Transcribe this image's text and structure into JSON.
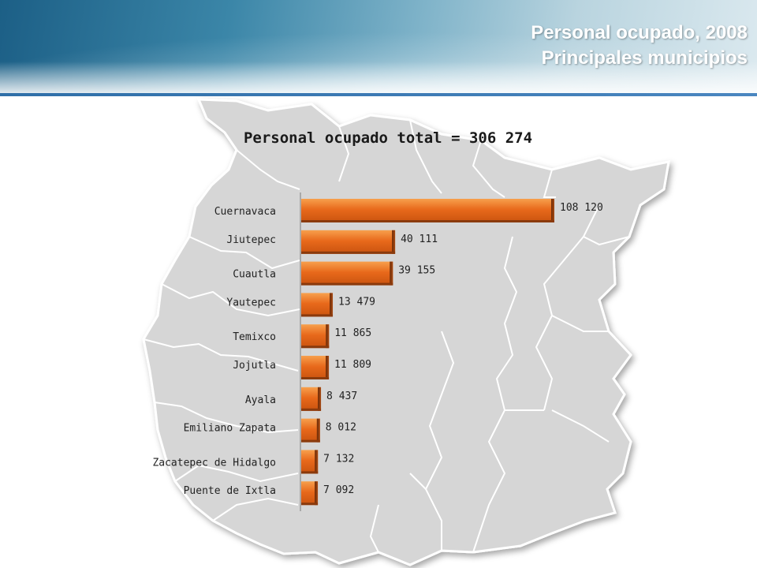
{
  "header": {
    "title_line1": "Personal ocupado, 2008",
    "title_line2": "Principales municipios"
  },
  "colors": {
    "bar_face": "#e8691b",
    "bar_highlight": "#f7a04d",
    "bar_dark": "#8a3a0d",
    "map_fill": "#d6d6d6",
    "map_lines": "#ffffff"
  },
  "chart_data": {
    "type": "bar",
    "orientation": "horizontal",
    "title": "Personal ocupado total = 306 274",
    "categories": [
      "Cuernavaca",
      "Jiutepec",
      "Cuautla",
      "Yautepec",
      "Temixco",
      "Jojutla",
      "Ayala",
      "Emiliano Zapata",
      "Zacatepec de Hidalgo",
      "Puente de Ixtla"
    ],
    "values": [
      108120,
      40111,
      39155,
      13479,
      11865,
      11809,
      8437,
      8012,
      7132,
      7092
    ],
    "value_labels": [
      "108 120",
      "40 111",
      "39 155",
      "13 479",
      "11 865",
      "11 809",
      "8 437",
      "8 012",
      "7 132",
      "7 092"
    ],
    "xlim": [
      0,
      108120
    ],
    "grid": false,
    "legend": "none"
  }
}
